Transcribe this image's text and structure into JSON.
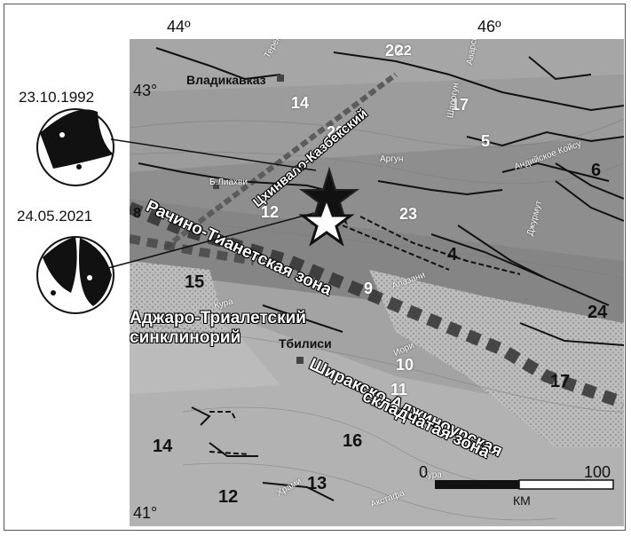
{
  "coords": {
    "lon_left": "44º",
    "lon_right": "46º",
    "lat_top": "43°",
    "lat_bottom": "41°"
  },
  "events": [
    {
      "date": "23.10.1992"
    },
    {
      "date": "24.05.2021"
    }
  ],
  "cities": {
    "vladikavkaz": "Владикавказ",
    "tbilisi": "Тбилиси",
    "b_liakhvi": "Б.Лиахви"
  },
  "zones": {
    "racha": "Рачино-Тианетская зона",
    "kazbek": "Цхинвало-Казбекский",
    "adjara_1": "Аджаро-Триалетский",
    "adjara_2": "синклинорий",
    "shirak_1": "Ширакско-Аджиноурская",
    "shirak_2": "складчатая зона"
  },
  "rivers": {
    "terek": "Терек",
    "argun": "Аргун",
    "andiyskoe": "Андийское Койсу",
    "dzhurmut": "Джурмут",
    "alazani": "Алазани",
    "kura": "Кура",
    "iori": "Иори",
    "khrami": "Храми",
    "akstafa": "Акстафа",
    "avarskoe": "Аварское",
    "shoroshgun": "Шарогун",
    "ku": "Кура"
  },
  "numbers_white": [
    "20",
    "22",
    "14",
    "17",
    "20",
    "12",
    "23",
    "9",
    "10",
    "11",
    "5"
  ],
  "numbers_black": [
    "6",
    "4",
    "24",
    "17",
    "15",
    "14",
    "16",
    "13",
    "12",
    "8"
  ],
  "scale": {
    "zero": "0",
    "max": "100",
    "unit": "КМ"
  },
  "colors": {
    "map_base": "#8d8d8d",
    "star_1992": "#111111",
    "star_2021": "#ffffff"
  }
}
